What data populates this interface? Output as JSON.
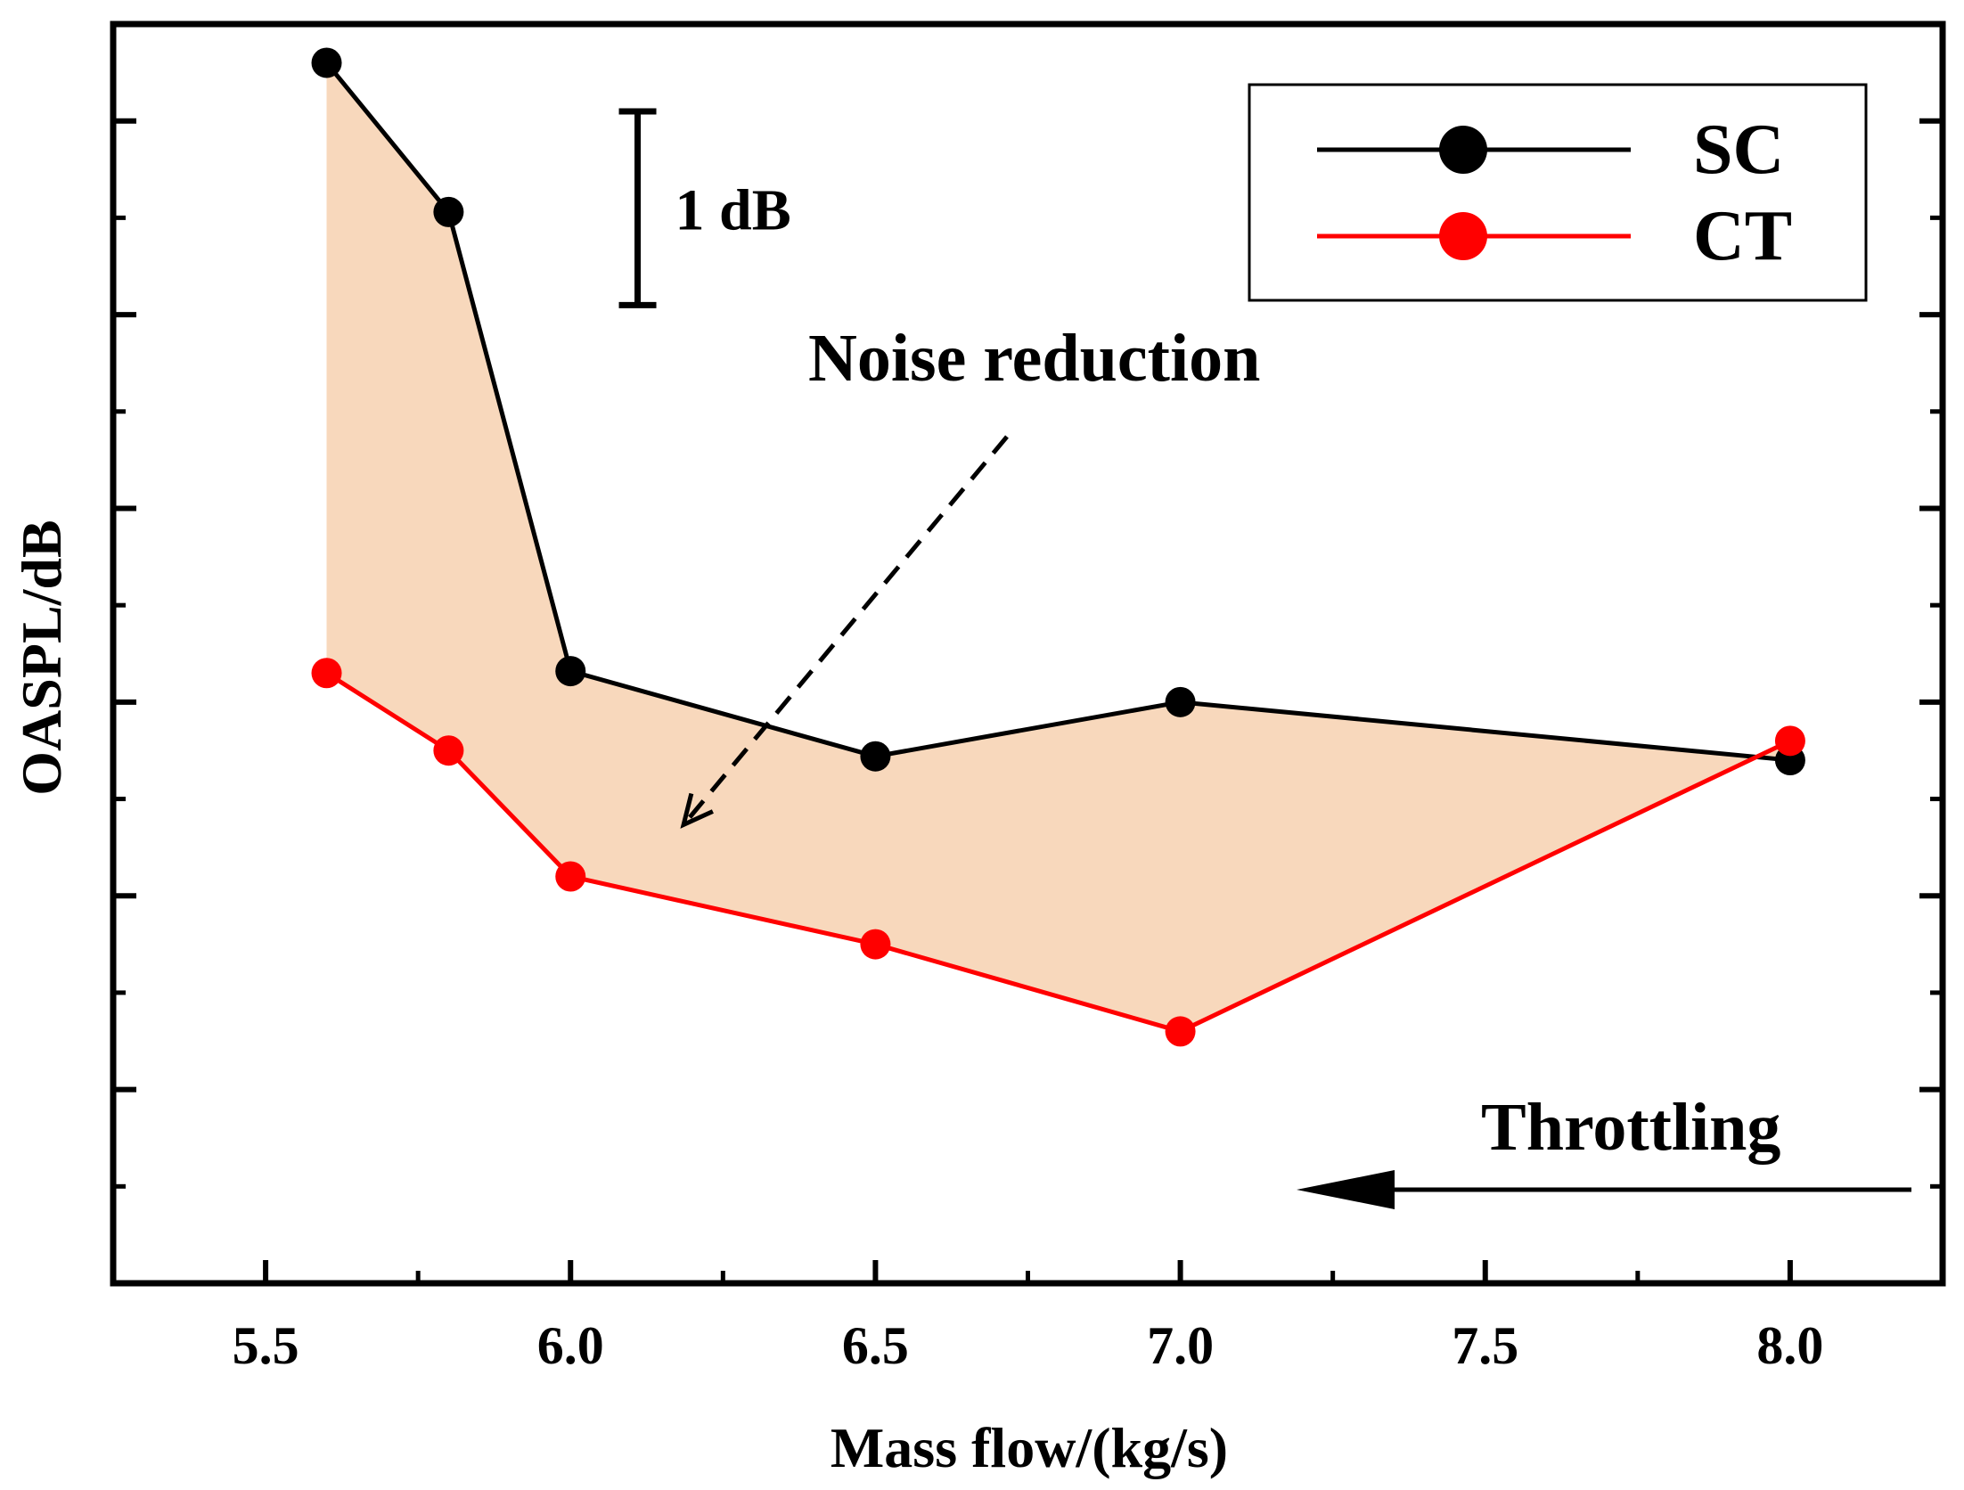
{
  "chart_data": {
    "type": "line",
    "title": "",
    "xlabel": "Mass flow/(kg/s)",
    "ylabel": "OASPL/dB",
    "xlim": [
      5.25,
      8.25
    ],
    "ylim": [
      0,
      6.5
    ],
    "x_ticks": [
      5.5,
      6.0,
      6.5,
      7.0,
      7.5,
      8.0
    ],
    "x_tick_labels": [
      "5.5",
      "6.0",
      "6.5",
      "7.0",
      "7.5",
      "8.0"
    ],
    "y_ticks_major": [
      1,
      2,
      3,
      4,
      5,
      6
    ],
    "y_tick_labels_shown": false,
    "grid": false,
    "legend_position": "top-right",
    "series": [
      {
        "name": "SC",
        "color": "#000000",
        "x": [
          5.6,
          5.8,
          6.0,
          6.5,
          7.0,
          8.0
        ],
        "y": [
          6.3,
          5.53,
          3.16,
          2.72,
          3.0,
          2.7
        ]
      },
      {
        "name": "CT",
        "color": "#ff0000",
        "x": [
          5.6,
          5.8,
          6.0,
          6.5,
          7.0,
          8.0
        ],
        "y": [
          3.15,
          2.75,
          2.1,
          1.75,
          1.3,
          2.8
        ]
      }
    ],
    "fill_between": {
      "series": [
        "SC",
        "CT"
      ],
      "color": "#f8d8bc"
    },
    "annotations": [
      {
        "text": "1 dB",
        "type": "scale-bar",
        "y_from": 5.5,
        "y_to": 6.5,
        "x": 6.11
      },
      {
        "text": "Noise reduction",
        "type": "dashed-arrow",
        "x": 6.35,
        "y": 4.78,
        "points_to_x": 6.2,
        "points_to_y": 2.45
      },
      {
        "text": "Throttling",
        "type": "arrow",
        "x": 7.8,
        "y": 0.9,
        "direction": "left",
        "from_x": 8.2,
        "to_x": 7.2,
        "y_arrow": 0.55
      }
    ]
  }
}
